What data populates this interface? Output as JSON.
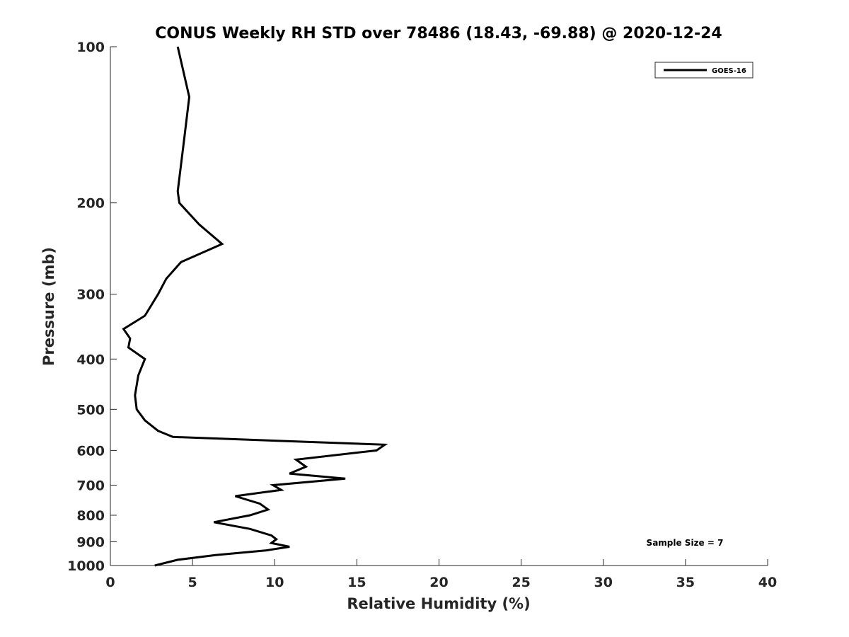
{
  "chart_data": {
    "type": "line",
    "title": "CONUS Weekly RH STD over 78486 (18.43, -69.88) @ 2020-12-24",
    "xlabel": "Relative Humidity (%)",
    "ylabel": "Pressure (mb)",
    "xlim": [
      0,
      40
    ],
    "ylim": [
      100,
      1000
    ],
    "y_scale": "log",
    "y_reversed": true,
    "x_ticks": [
      0,
      5,
      10,
      15,
      20,
      25,
      30,
      35,
      40
    ],
    "y_ticks": [
      100,
      200,
      300,
      400,
      500,
      600,
      700,
      800,
      900,
      1000
    ],
    "grid": false,
    "legend": {
      "entries": [
        "GOES-16"
      ],
      "placement": "top-right"
    },
    "annotation": "Sample Size = 7",
    "series": [
      {
        "name": "GOES-16",
        "color": "#000000",
        "points": [
          [
            4.1,
            100
          ],
          [
            4.8,
            125
          ],
          [
            4.5,
            150
          ],
          [
            4.1,
            190
          ],
          [
            4.2,
            200
          ],
          [
            5.4,
            220
          ],
          [
            6.8,
            240
          ],
          [
            4.3,
            260
          ],
          [
            3.4,
            280
          ],
          [
            2.9,
            300
          ],
          [
            2.1,
            330
          ],
          [
            0.8,
            350
          ],
          [
            1.2,
            365
          ],
          [
            1.1,
            380
          ],
          [
            2.1,
            400
          ],
          [
            1.7,
            430
          ],
          [
            1.5,
            470
          ],
          [
            1.6,
            500
          ],
          [
            2.1,
            525
          ],
          [
            2.9,
            550
          ],
          [
            3.8,
            565
          ],
          [
            16.7,
            585
          ],
          [
            16.2,
            600
          ],
          [
            11.3,
            625
          ],
          [
            11.9,
            645
          ],
          [
            10.9,
            665
          ],
          [
            14.3,
            680
          ],
          [
            9.9,
            700
          ],
          [
            10.4,
            715
          ],
          [
            7.6,
            735
          ],
          [
            9.1,
            760
          ],
          [
            9.6,
            780
          ],
          [
            8.5,
            800
          ],
          [
            6.3,
            825
          ],
          [
            8.5,
            850
          ],
          [
            9.8,
            875
          ],
          [
            10.1,
            890
          ],
          [
            9.8,
            905
          ],
          [
            10.9,
            920
          ],
          [
            9.5,
            935
          ],
          [
            6.4,
            955
          ],
          [
            4.1,
            975
          ],
          [
            2.7,
            1000
          ]
        ]
      }
    ]
  }
}
